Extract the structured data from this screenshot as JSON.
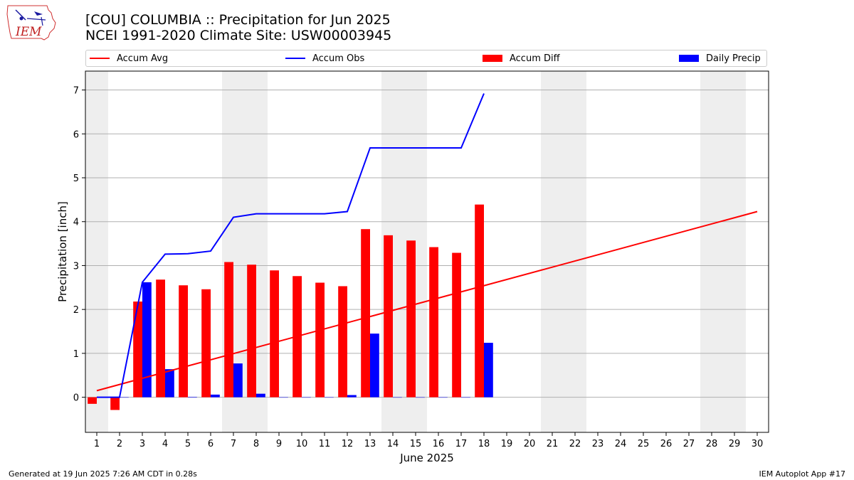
{
  "header": {
    "title_line1": "[COU] COLUMBIA :: Precipitation for Jun 2025",
    "title_line2": "NCEI 1991-2020 Climate Site: USW00003945",
    "logo_text": "IEM"
  },
  "footer": {
    "left": "Generated at 19 Jun 2025 7:26 AM CDT in 0.28s",
    "right": "IEM Autoplot App #17"
  },
  "legend": {
    "items": [
      {
        "label": "Accum Avg",
        "kind": "line",
        "color": "#ff0000"
      },
      {
        "label": "Accum Obs",
        "kind": "line",
        "color": "#0000ff"
      },
      {
        "label": "Accum Diff",
        "kind": "box",
        "color": "#ff0000"
      },
      {
        "label": "Daily Precip",
        "kind": "box",
        "color": "#0000ff"
      }
    ]
  },
  "chart_data": {
    "type": "bar",
    "xlabel": "June 2025",
    "ylabel": "Precipitation [inch]",
    "xlim": [
      0.5,
      30.5
    ],
    "ylim": [
      -0.8,
      7.43
    ],
    "x_ticks": [
      1,
      2,
      3,
      4,
      5,
      6,
      7,
      8,
      9,
      10,
      11,
      12,
      13,
      14,
      15,
      16,
      17,
      18,
      19,
      20,
      21,
      22,
      23,
      24,
      25,
      26,
      27,
      28,
      29,
      30
    ],
    "y_ticks": [
      0,
      1,
      2,
      3,
      4,
      5,
      6,
      7
    ],
    "grid": "horizontal",
    "legend_position": "top",
    "weekend_shading": [
      [
        0.5,
        1.5
      ],
      [
        6.5,
        8.5
      ],
      [
        13.5,
        15.5
      ],
      [
        20.5,
        22.5
      ],
      [
        27.5,
        29.5
      ]
    ],
    "colors": {
      "avg": "#ff0000",
      "obs": "#0000ff",
      "diff": "#ff0000",
      "daily": "#0000ff",
      "weekend": "#eeeeee",
      "grid": "#b0b0b0"
    },
    "series": [
      {
        "name": "Accum Avg",
        "kind": "line",
        "x": [
          1,
          30
        ],
        "values": [
          0.15,
          4.23
        ]
      },
      {
        "name": "Accum Obs",
        "kind": "line",
        "x": [
          1,
          2,
          3,
          4,
          5,
          6,
          7,
          8,
          9,
          10,
          11,
          12,
          13,
          14,
          15,
          16,
          17,
          18
        ],
        "values": [
          0.0,
          0.0,
          2.62,
          3.26,
          3.27,
          3.33,
          4.1,
          4.18,
          4.18,
          4.18,
          4.18,
          4.23,
          5.68,
          5.68,
          5.68,
          5.68,
          5.68,
          6.92
        ]
      },
      {
        "name": "Accum Diff",
        "kind": "bar",
        "x": [
          1,
          2,
          3,
          4,
          5,
          6,
          7,
          8,
          9,
          10,
          11,
          12,
          13,
          14,
          15,
          16,
          17,
          18
        ],
        "values": [
          -0.15,
          -0.29,
          2.18,
          2.68,
          2.55,
          2.46,
          3.08,
          3.02,
          2.89,
          2.76,
          2.61,
          2.53,
          3.83,
          3.69,
          3.57,
          3.42,
          3.29,
          4.39
        ]
      },
      {
        "name": "Daily Precip",
        "kind": "bar",
        "x": [
          1,
          2,
          3,
          4,
          5,
          6,
          7,
          8,
          9,
          10,
          11,
          12,
          13,
          14,
          15,
          16,
          17,
          18
        ],
        "values": [
          0.0,
          0.0,
          2.62,
          0.64,
          0.01,
          0.06,
          0.77,
          0.08,
          0.0,
          0.0,
          0.0,
          0.05,
          1.45,
          0.0,
          0.0,
          0.0,
          0.0,
          1.24
        ]
      }
    ]
  }
}
